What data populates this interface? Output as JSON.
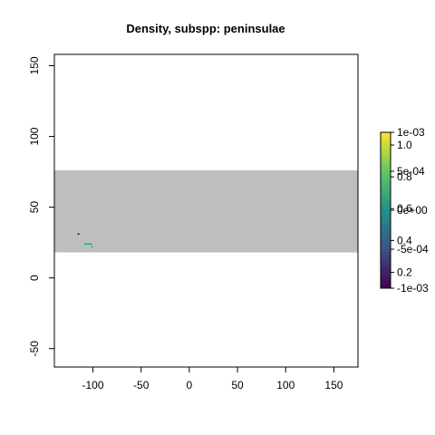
{
  "chart_data": {
    "type": "heatmap",
    "title": "Density, subspp: peninsulae",
    "xlabel": "",
    "ylabel": "",
    "xlim": [
      -140,
      175
    ],
    "ylim": [
      -63,
      158
    ],
    "x_ticks": [
      -100,
      -50,
      0,
      50,
      100,
      150
    ],
    "y_ticks": [
      -50,
      0,
      50,
      100,
      150
    ],
    "x_tick_labels": [
      "-100",
      "-50",
      "0",
      "50",
      "100",
      "150"
    ],
    "y_tick_labels": [
      "-50",
      "0",
      "50",
      "100",
      "150"
    ],
    "raster_band": {
      "ymin": 18,
      "ymax": 76,
      "color": "#bebebe"
    },
    "density_marks": [
      {
        "x0": -116,
        "x1": -114,
        "y": 31,
        "color": "#440154"
      },
      {
        "x0": -109,
        "x1": -101,
        "y": 24,
        "color": "#22a884"
      },
      {
        "x0": -102,
        "x1": -100,
        "y": 22,
        "color": "#2ab07f"
      }
    ],
    "legend_left": {
      "labels": [
        "1e-03",
        "5e-04",
        "0e+00",
        "-5e-04",
        "-1e-03"
      ],
      "values": [
        0.001,
        0.0005,
        0,
        -0.0005,
        -0.001
      ],
      "range": [
        -0.001,
        0.001
      ]
    },
    "legend_right": {
      "labels": [
        "1.0",
        "0.8",
        "0.6",
        "0.4",
        "0.2"
      ],
      "values": [
        1.0,
        0.8,
        0.6,
        0.4,
        0.2
      ],
      "range": [
        0.1,
        1.08
      ]
    },
    "colormap": [
      "#440154",
      "#3b528b",
      "#21918c",
      "#5ec962",
      "#fde725"
    ],
    "grid": false,
    "legend_position": "right"
  }
}
